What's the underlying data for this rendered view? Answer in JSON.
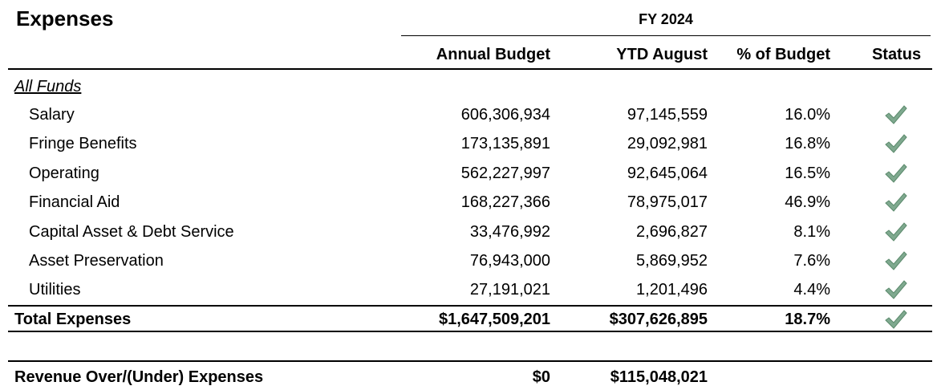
{
  "title": "Expenses",
  "period": "FY 2024",
  "columns": [
    "Annual Budget",
    "YTD August",
    "% of Budget",
    "Status"
  ],
  "section": "All Funds",
  "rows": [
    [
      "Salary",
      "606,306,934",
      "97,145,559",
      "16.0%"
    ],
    [
      "Fringe Benefits",
      "173,135,891",
      "29,092,981",
      "16.8%"
    ],
    [
      "Operating",
      "562,227,997",
      "92,645,064",
      "16.5%"
    ],
    [
      "Financial Aid",
      "168,227,366",
      "78,975,017",
      "46.9%"
    ],
    [
      "Capital Asset & Debt Service",
      "33,476,992",
      "2,696,827",
      "8.1%"
    ],
    [
      "Asset Preservation",
      "76,943,000",
      "5,869,952",
      "7.6%"
    ],
    [
      "Utilities",
      "27,191,021",
      "1,201,496",
      "4.4%"
    ]
  ],
  "total": [
    "Total Expenses",
    "$1,647,509,201",
    "$307,626,895",
    "18.7%"
  ],
  "revenue": [
    "Revenue Over/(Under) Expenses",
    "$0",
    "$115,048,021"
  ]
}
